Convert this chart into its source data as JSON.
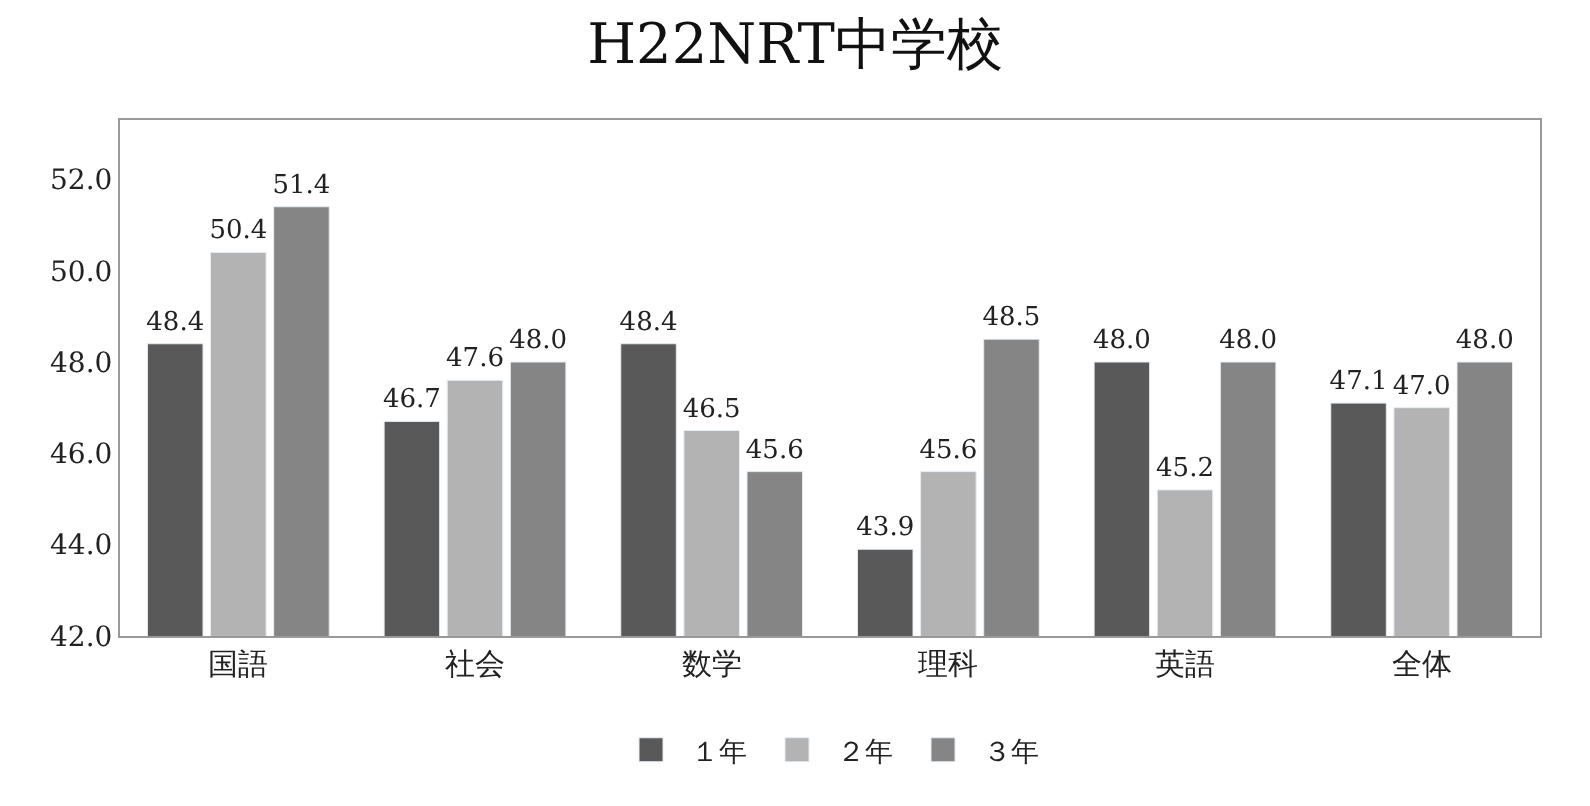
{
  "chart_data": {
    "type": "bar",
    "title": "H22NRT中学校",
    "categories": [
      "国語",
      "社会",
      "数学",
      "理科",
      "英語",
      "全体"
    ],
    "series": [
      {
        "name": "１年",
        "color": "#595959",
        "values": [
          48.4,
          46.7,
          48.4,
          43.9,
          48.0,
          47.1
        ],
        "value_labels": [
          "48.4",
          "46.7",
          "48.4",
          "43.9",
          "48.0",
          "47.1"
        ]
      },
      {
        "name": "２年",
        "color": "#b3b3b3",
        "values": [
          50.4,
          47.6,
          46.5,
          45.6,
          45.2,
          47.0
        ],
        "value_labels": [
          "50.4",
          "47.6",
          "46.5",
          "45.6",
          "45.2",
          "47.0"
        ]
      },
      {
        "name": "３年",
        "color": "#858585",
        "values": [
          51.4,
          48.0,
          45.6,
          48.5,
          48.0,
          48.0
        ],
        "value_labels": [
          "51.4",
          "48.0",
          "45.6",
          "48.5",
          "48.0",
          "48.0"
        ]
      }
    ],
    "ylim": [
      42,
      53.3
    ],
    "yticks": [
      {
        "value": 42,
        "label": "42.0"
      },
      {
        "value": 44,
        "label": "44.0"
      },
      {
        "value": 46,
        "label": "46.0"
      },
      {
        "value": 48,
        "label": "48.0"
      },
      {
        "value": 50,
        "label": "50.0"
      },
      {
        "value": 52,
        "label": "52.0"
      }
    ],
    "grid": false,
    "legend": "bottom"
  }
}
